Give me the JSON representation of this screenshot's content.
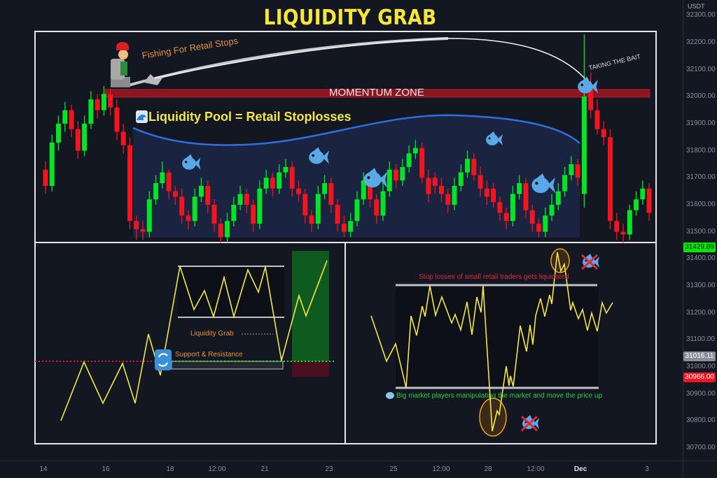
{
  "title": "LIQUIDITY GRAB",
  "annotations": {
    "fishing": "Fishing For Retail Stops",
    "momentum_zone": "MOMENTUM ZONE",
    "liquidity_pool": "Liquidity Pool = Retail Stoplosses",
    "taking_bait": "TAKING THE BAIT",
    "liquidity_grab": "Liquidity Grab",
    "support_resistance": "Support & Resistance",
    "stop_losses": "Stop losses of small retail traders gets liquidated",
    "big_players": "Big market players manipulating the market and move the price up"
  },
  "colors": {
    "background": "#131722",
    "up": "#00e626",
    "down": "#f2141e",
    "title": "#f7e53b",
    "momentum_zone": "#8b1520",
    "pool_curve": "#2f6fe0",
    "fish": "#5aa9e6",
    "zigzag": "#f2e64a"
  },
  "icons": [
    "fisherman-icon",
    "fishing-rod-icon",
    "fish-icon",
    "wave-icon",
    "refresh-icon",
    "whale-icon",
    "crossed-fish-icon"
  ],
  "chart_data": {
    "type": "candlestick",
    "currency": "USDT",
    "ylim": [
      30650,
      32330
    ],
    "grid": false,
    "y_ticks": [
      "32300.00",
      "32200.00",
      "32100.00",
      "32000.00",
      "31900.00",
      "31800.00",
      "31700.00",
      "31600.00",
      "31500.00",
      "31400.00",
      "31300.00",
      "31200.00",
      "31100.00",
      "31000.00",
      "30900.00",
      "30800.00",
      "30700.00"
    ],
    "x_ticks": [
      "14",
      "16",
      "18",
      "12:00",
      "21",
      "23",
      "25",
      "12:00",
      "28",
      "12:00",
      "Dec",
      "3"
    ],
    "price_badges": [
      {
        "value": "31429.89",
        "color": "#00e600",
        "text_color": "#0b1a0b"
      },
      {
        "value": "31016.11",
        "color": "#8a8e99",
        "text_color": "#ffffff"
      },
      {
        "value": "30966.00",
        "color": "#f2141e",
        "text_color": "#ffffff"
      }
    ],
    "candles_ohlc": [
      [
        31730,
        31760,
        31640,
        31670
      ],
      [
        31670,
        31860,
        31650,
        31830
      ],
      [
        31830,
        31930,
        31800,
        31900
      ],
      [
        31900,
        31980,
        31870,
        31950
      ],
      [
        31950,
        31970,
        31850,
        31880
      ],
      [
        31880,
        31910,
        31770,
        31800
      ],
      [
        31800,
        31930,
        31780,
        31900
      ],
      [
        31900,
        32020,
        31880,
        31990
      ],
      [
        31990,
        32010,
        31920,
        31950
      ],
      [
        31950,
        32040,
        31930,
        32010
      ],
      [
        32010,
        32030,
        31930,
        31960
      ],
      [
        31960,
        31990,
        31840,
        31870
      ],
      [
        31870,
        31900,
        31790,
        31820
      ],
      [
        31820,
        31850,
        31510,
        31540
      ],
      [
        31540,
        31560,
        31470,
        31510
      ],
      [
        31510,
        31540,
        31470,
        31500
      ],
      [
        31500,
        31650,
        31480,
        31620
      ],
      [
        31620,
        31710,
        31600,
        31680
      ],
      [
        31680,
        31760,
        31660,
        31720
      ],
      [
        31720,
        31730,
        31620,
        31650
      ],
      [
        31650,
        31670,
        31600,
        31630
      ],
      [
        31630,
        31660,
        31530,
        31560
      ],
      [
        31560,
        31580,
        31510,
        31540
      ],
      [
        31540,
        31660,
        31520,
        31630
      ],
      [
        31630,
        31700,
        31610,
        31670
      ],
      [
        31670,
        31690,
        31570,
        31600
      ],
      [
        31600,
        31620,
        31500,
        31530
      ],
      [
        31530,
        31550,
        31460,
        31480
      ],
      [
        31480,
        31570,
        31460,
        31540
      ],
      [
        31540,
        31630,
        31520,
        31600
      ],
      [
        31600,
        31670,
        31580,
        31640
      ],
      [
        31640,
        31660,
        31570,
        31600
      ],
      [
        31600,
        31620,
        31500,
        31530
      ],
      [
        31530,
        31690,
        31510,
        31660
      ],
      [
        31660,
        31730,
        31640,
        31700
      ],
      [
        31700,
        31720,
        31630,
        31660
      ],
      [
        31660,
        31750,
        31640,
        31720
      ],
      [
        31720,
        31770,
        31700,
        31740
      ],
      [
        31740,
        31760,
        31630,
        31660
      ],
      [
        31660,
        31690,
        31610,
        31640
      ],
      [
        31640,
        31660,
        31530,
        31560
      ],
      [
        31560,
        31580,
        31500,
        31530
      ],
      [
        31530,
        31670,
        31510,
        31640
      ],
      [
        31640,
        31710,
        31620,
        31680
      ],
      [
        31680,
        31700,
        31570,
        31600
      ],
      [
        31600,
        31620,
        31500,
        31530
      ],
      [
        31530,
        31560,
        31480,
        31500
      ],
      [
        31500,
        31570,
        31480,
        31540
      ],
      [
        31540,
        31650,
        31520,
        31620
      ],
      [
        31620,
        31720,
        31600,
        31690
      ],
      [
        31690,
        31710,
        31590,
        31620
      ],
      [
        31620,
        31640,
        31530,
        31560
      ],
      [
        31560,
        31680,
        31540,
        31650
      ],
      [
        31650,
        31760,
        31630,
        31730
      ],
      [
        31730,
        31750,
        31660,
        31690
      ],
      [
        31690,
        31770,
        31670,
        31740
      ],
      [
        31740,
        31820,
        31720,
        31790
      ],
      [
        31790,
        31840,
        31770,
        31810
      ],
      [
        31810,
        31830,
        31680,
        31700
      ],
      [
        31700,
        31730,
        31610,
        31640
      ],
      [
        31700,
        31720,
        31640,
        31670
      ],
      [
        31670,
        31700,
        31610,
        31640
      ],
      [
        31640,
        31660,
        31570,
        31600
      ],
      [
        31600,
        31700,
        31580,
        31670
      ],
      [
        31670,
        31750,
        31650,
        31720
      ],
      [
        31720,
        31800,
        31700,
        31770
      ],
      [
        31770,
        31790,
        31690,
        31710
      ],
      [
        31710,
        31740,
        31630,
        31660
      ],
      [
        31660,
        31690,
        31600,
        31630
      ],
      [
        31660,
        31680,
        31590,
        31610
      ],
      [
        31610,
        31630,
        31540,
        31570
      ],
      [
        31570,
        31590,
        31510,
        31540
      ],
      [
        31540,
        31670,
        31520,
        31640
      ],
      [
        31640,
        31710,
        31620,
        31680
      ],
      [
        31680,
        31700,
        31550,
        31580
      ],
      [
        31580,
        31600,
        31500,
        31530
      ],
      [
        31530,
        31550,
        31480,
        31500
      ],
      [
        31500,
        31590,
        31480,
        31560
      ],
      [
        31560,
        31640,
        31540,
        31600
      ],
      [
        31600,
        31680,
        31580,
        31650
      ],
      [
        31650,
        31740,
        31630,
        31710
      ],
      [
        31710,
        31780,
        31690,
        31750
      ],
      [
        31750,
        31770,
        31670,
        31700
      ],
      [
        31640,
        32230,
        31590,
        32000
      ],
      [
        32030,
        32090,
        31920,
        31950
      ],
      [
        31950,
        31990,
        31860,
        31880
      ],
      [
        31880,
        31910,
        31820,
        31850
      ],
      [
        31850,
        31880,
        31510,
        31540
      ],
      [
        31540,
        31570,
        31470,
        31500
      ],
      [
        31500,
        31530,
        31460,
        31490
      ],
      [
        31490,
        31600,
        31470,
        31580
      ],
      [
        31580,
        31650,
        31560,
        31620
      ],
      [
        31620,
        31690,
        31600,
        31660
      ],
      [
        31660,
        31680,
        31540,
        31570
      ]
    ]
  }
}
